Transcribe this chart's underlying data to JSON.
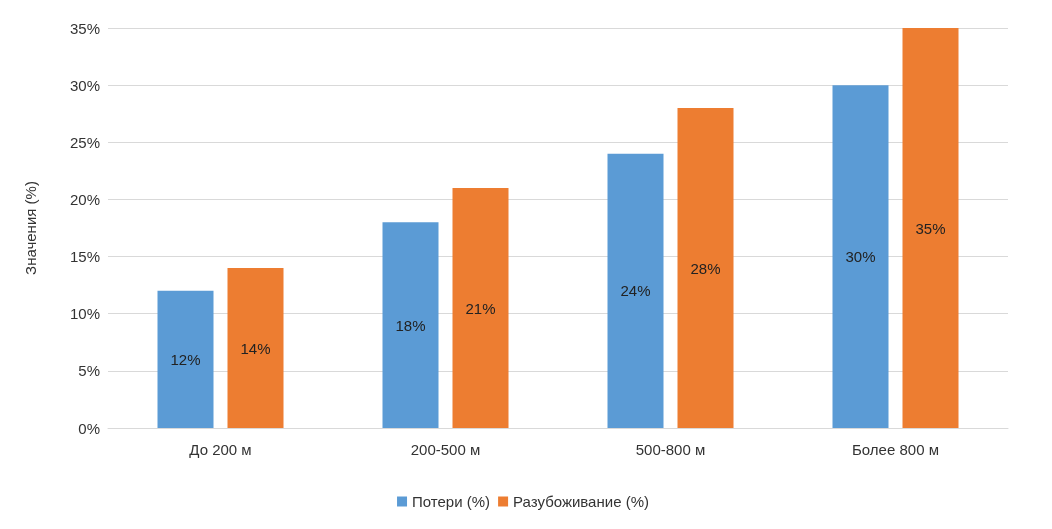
{
  "chart_data": {
    "type": "bar",
    "ylabel": "Значения (%)",
    "categories": [
      "До 200 м",
      "200-500 м",
      "500-800 м",
      "Более 800 м"
    ],
    "series": [
      {
        "name": "Потери (%)",
        "color": "#5b9bd5",
        "values": [
          12,
          18,
          24,
          30
        ],
        "value_labels": [
          "12%",
          "18%",
          "24%",
          "30%"
        ]
      },
      {
        "name": "Разубоживание (%)",
        "color": "#ed7d31",
        "values": [
          14,
          21,
          28,
          35
        ],
        "value_labels": [
          "14%",
          "21%",
          "28%",
          "35%"
        ]
      }
    ],
    "ylim": [
      0,
      35
    ],
    "yticks": [
      {
        "value": 0,
        "label": "0%"
      },
      {
        "value": 5,
        "label": "5%"
      },
      {
        "value": 10,
        "label": "10%"
      },
      {
        "value": 15,
        "label": "15%"
      },
      {
        "value": 20,
        "label": "20%"
      },
      {
        "value": 25,
        "label": "25%"
      },
      {
        "value": 30,
        "label": "30%"
      },
      {
        "value": 35,
        "label": "35%"
      }
    ],
    "grid": "y",
    "legend": "bottom"
  }
}
